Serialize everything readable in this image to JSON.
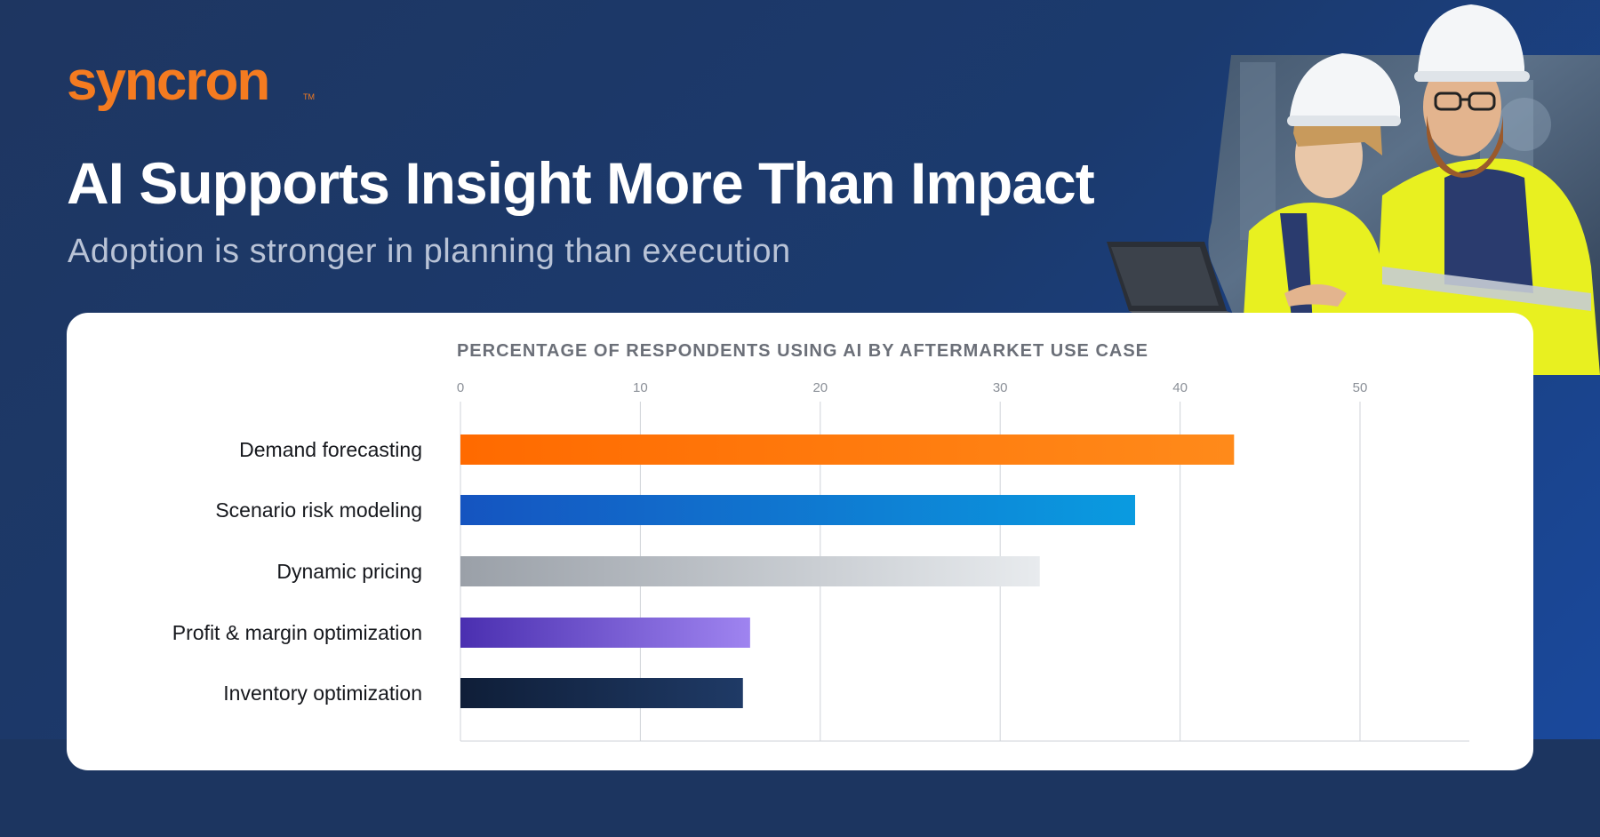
{
  "brand": {
    "name": "syncron",
    "color": "#f47b20"
  },
  "header": {
    "title": "AI Supports Insight More Than Impact",
    "subtitle": "Adoption is stronger in planning than execution"
  },
  "chart_data": {
    "type": "bar",
    "orientation": "horizontal",
    "title": "PERCENTAGE OF RESPONDENTS USING AI BY AFTERMARKET USE CASE",
    "categories": [
      "Demand forecasting",
      "Scenario risk modeling",
      "Dynamic pricing",
      "Profit & margin optimization",
      "Inventory optimization"
    ],
    "values": [
      43,
      37.5,
      32.2,
      16.1,
      15.7
    ],
    "xlim": [
      0,
      56
    ],
    "ticks": [
      "0",
      "10",
      "20",
      "30",
      "40",
      "50"
    ],
    "grid": true,
    "bar_colors": [
      [
        "#ff6a00",
        "#ff8a1a"
      ],
      [
        "#1554c0",
        "#0a9be0"
      ],
      [
        "#9aa0a8",
        "#e8ebee"
      ],
      [
        "#4a2fb0",
        "#9f84f0"
      ],
      [
        "#0f1e38",
        "#1f3a66"
      ]
    ]
  }
}
